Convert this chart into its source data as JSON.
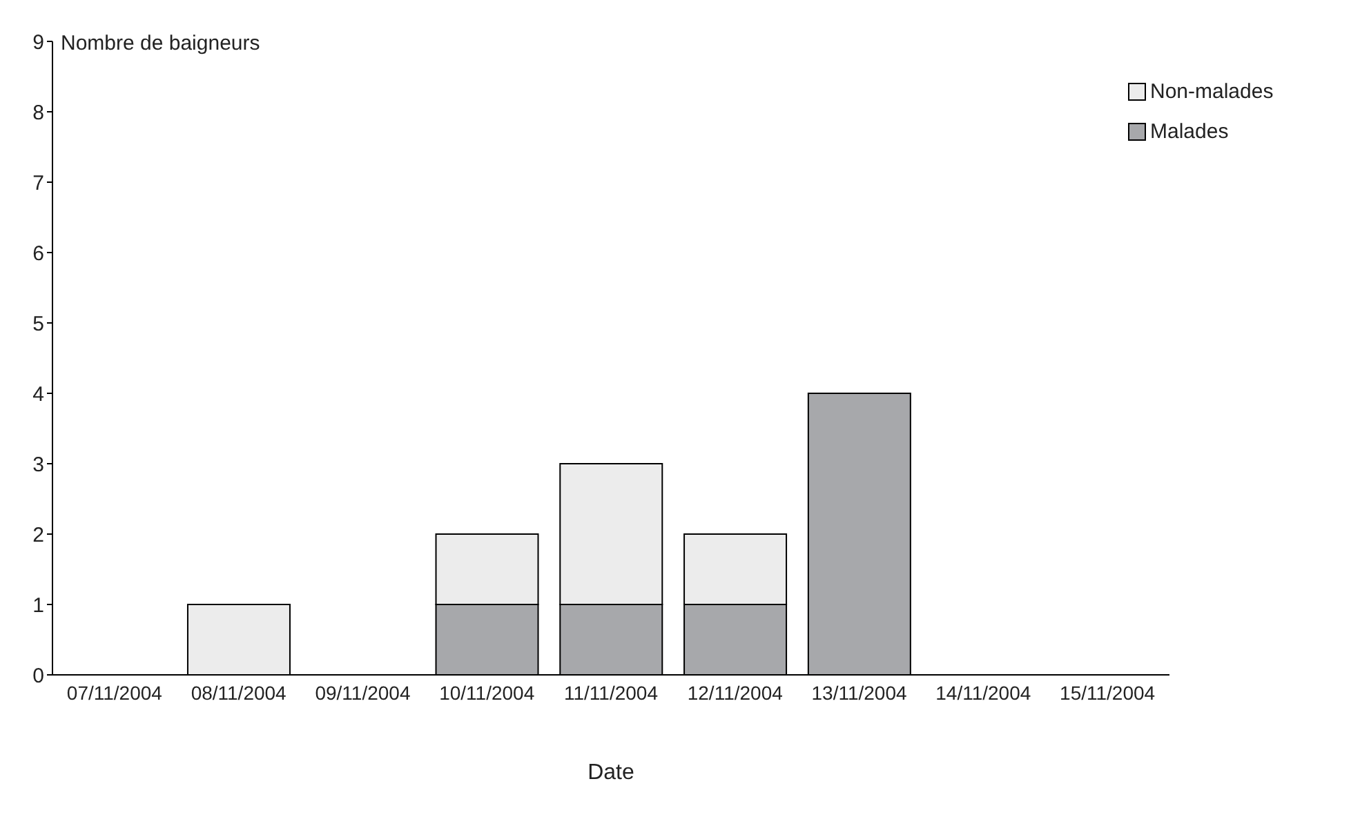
{
  "chart_data": {
    "type": "bar",
    "stacked": true,
    "ylabel": "Nombre de baigneurs",
    "xlabel": "Date",
    "categories": [
      "07/11/2004",
      "08/11/2004",
      "09/11/2004",
      "10/11/2004",
      "11/11/2004",
      "12/11/2004",
      "13/11/2004",
      "14/11/2004",
      "15/11/2004"
    ],
    "series": [
      {
        "name": "Malades",
        "color": "#a7a8ab",
        "values": [
          0,
          0,
          0,
          1,
          1,
          1,
          4,
          0,
          0
        ]
      },
      {
        "name": "Non-malades",
        "color": "#ececec",
        "values": [
          0,
          1,
          0,
          1,
          2,
          1,
          0,
          0,
          0
        ]
      }
    ],
    "ylim": [
      0,
      9
    ],
    "yticks": [
      0,
      1,
      2,
      3,
      4,
      5,
      6,
      7,
      8,
      9
    ],
    "grid": false,
    "legend": "top right"
  }
}
